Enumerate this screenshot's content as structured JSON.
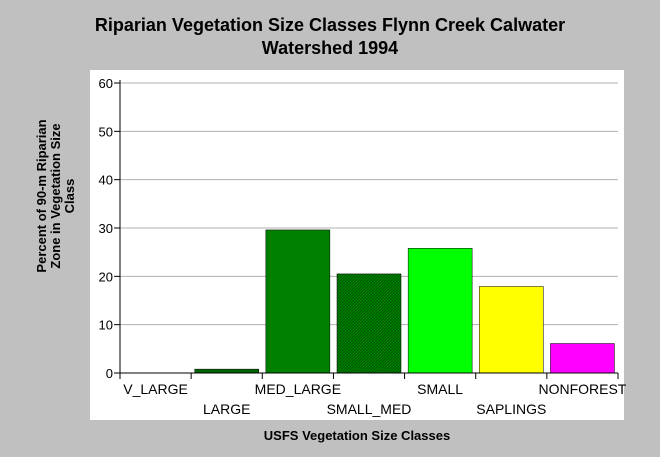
{
  "chart_data": {
    "type": "bar",
    "title_lines": [
      "Riparian Vegetation Size Classes Flynn Creek Calwater",
      "Watershed 1994"
    ],
    "xlabel": "USFS Vegetation Size Classes",
    "ylabel_lines": [
      "Percent of 90-m Riparian",
      "Zone in Vegetation Size",
      "Class"
    ],
    "categories": [
      "V_LARGE",
      "LARGE",
      "MED_LARGE",
      "SMALL_MED",
      "SMALL",
      "SAPLINGS",
      "NONFOREST"
    ],
    "values": [
      0,
      0.8,
      29.6,
      20.5,
      25.8,
      17.9,
      6.1
    ],
    "colors": [
      "#006400",
      "#006400",
      "#008000",
      "#008000",
      "#00ff00",
      "#ffff00",
      "#ff00ff"
    ],
    "hatched": [
      false,
      false,
      false,
      true,
      false,
      false,
      false
    ],
    "ylim": [
      0,
      60
    ],
    "yticks": [
      0,
      10,
      20,
      30,
      40,
      50,
      60
    ],
    "grid": true,
    "legend": "none"
  }
}
